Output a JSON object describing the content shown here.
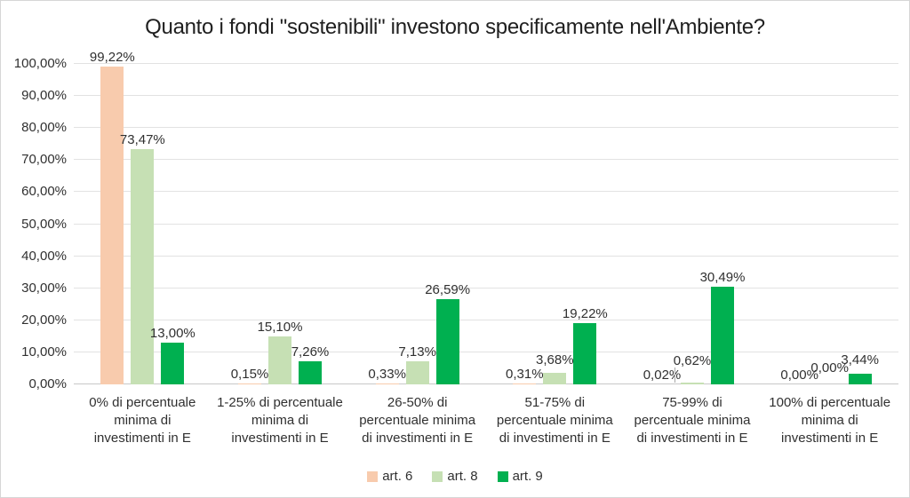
{
  "chart_data": {
    "type": "bar",
    "title": "Quanto i fondi \"sostenibili\" investono specificamente nell'Ambiente?",
    "categories": [
      "0% di percentuale minima di investimenti in E",
      "1-25% di percentuale minima di investimenti in E",
      "26-50% di percentuale minima di investimenti in E",
      "51-75% di percentuale minima di investimenti in E",
      "75-99% di percentuale minima di investimenti in E",
      "100% di percentuale minima di investimenti in E"
    ],
    "category_lines": [
      [
        "0% di percentuale",
        "minima di",
        "investimenti in E"
      ],
      [
        "1-25% di percentuale",
        "minima di",
        "investimenti in E"
      ],
      [
        "26-50% di",
        "percentuale minima",
        "di investimenti in E"
      ],
      [
        "51-75% di",
        "percentuale minima",
        "di investimenti in E"
      ],
      [
        "75-99% di",
        "percentuale minima",
        "di investimenti in E"
      ],
      [
        "100% di percentuale",
        "minima di",
        "investimenti in E"
      ]
    ],
    "series": [
      {
        "name": "art. 6",
        "color": "#F8CBAD",
        "values": [
          99.22,
          0.15,
          0.33,
          0.31,
          0.02,
          0.0
        ],
        "labels": [
          "99,22%",
          "0,15%",
          "0,33%",
          "0,31%",
          "0,02%",
          "0,00%"
        ]
      },
      {
        "name": "art. 8",
        "color": "#C6E0B4",
        "values": [
          73.47,
          15.1,
          7.13,
          3.68,
          0.62,
          0.0
        ],
        "labels": [
          "73,47%",
          "15,10%",
          "7,13%",
          "3,68%",
          "0,62%",
          "0,00%"
        ]
      },
      {
        "name": "art. 9",
        "color": "#00B050",
        "values": [
          13.0,
          7.26,
          26.59,
          19.22,
          30.49,
          3.44
        ],
        "labels": [
          "13,00%",
          "7,26%",
          "26,59%",
          "19,22%",
          "30,49%",
          "3,44%"
        ]
      }
    ],
    "ylim": [
      0,
      100
    ],
    "ytick_step": 10,
    "ytick_labels": [
      "0,00%",
      "10,00%",
      "20,00%",
      "30,00%",
      "40,00%",
      "50,00%",
      "60,00%",
      "70,00%",
      "80,00%",
      "90,00%",
      "100,00%"
    ],
    "grid": true,
    "legend_position": "bottom",
    "layout_hints": {
      "label_dy": [
        [
          0,
          0,
          0,
          0,
          0,
          0
        ],
        [
          0,
          0,
          0,
          4,
          14,
          8
        ],
        [
          0,
          0,
          0,
          0,
          0,
          5
        ]
      ],
      "leader_lines": [
        {
          "series": 1,
          "category": 4
        }
      ]
    }
  }
}
